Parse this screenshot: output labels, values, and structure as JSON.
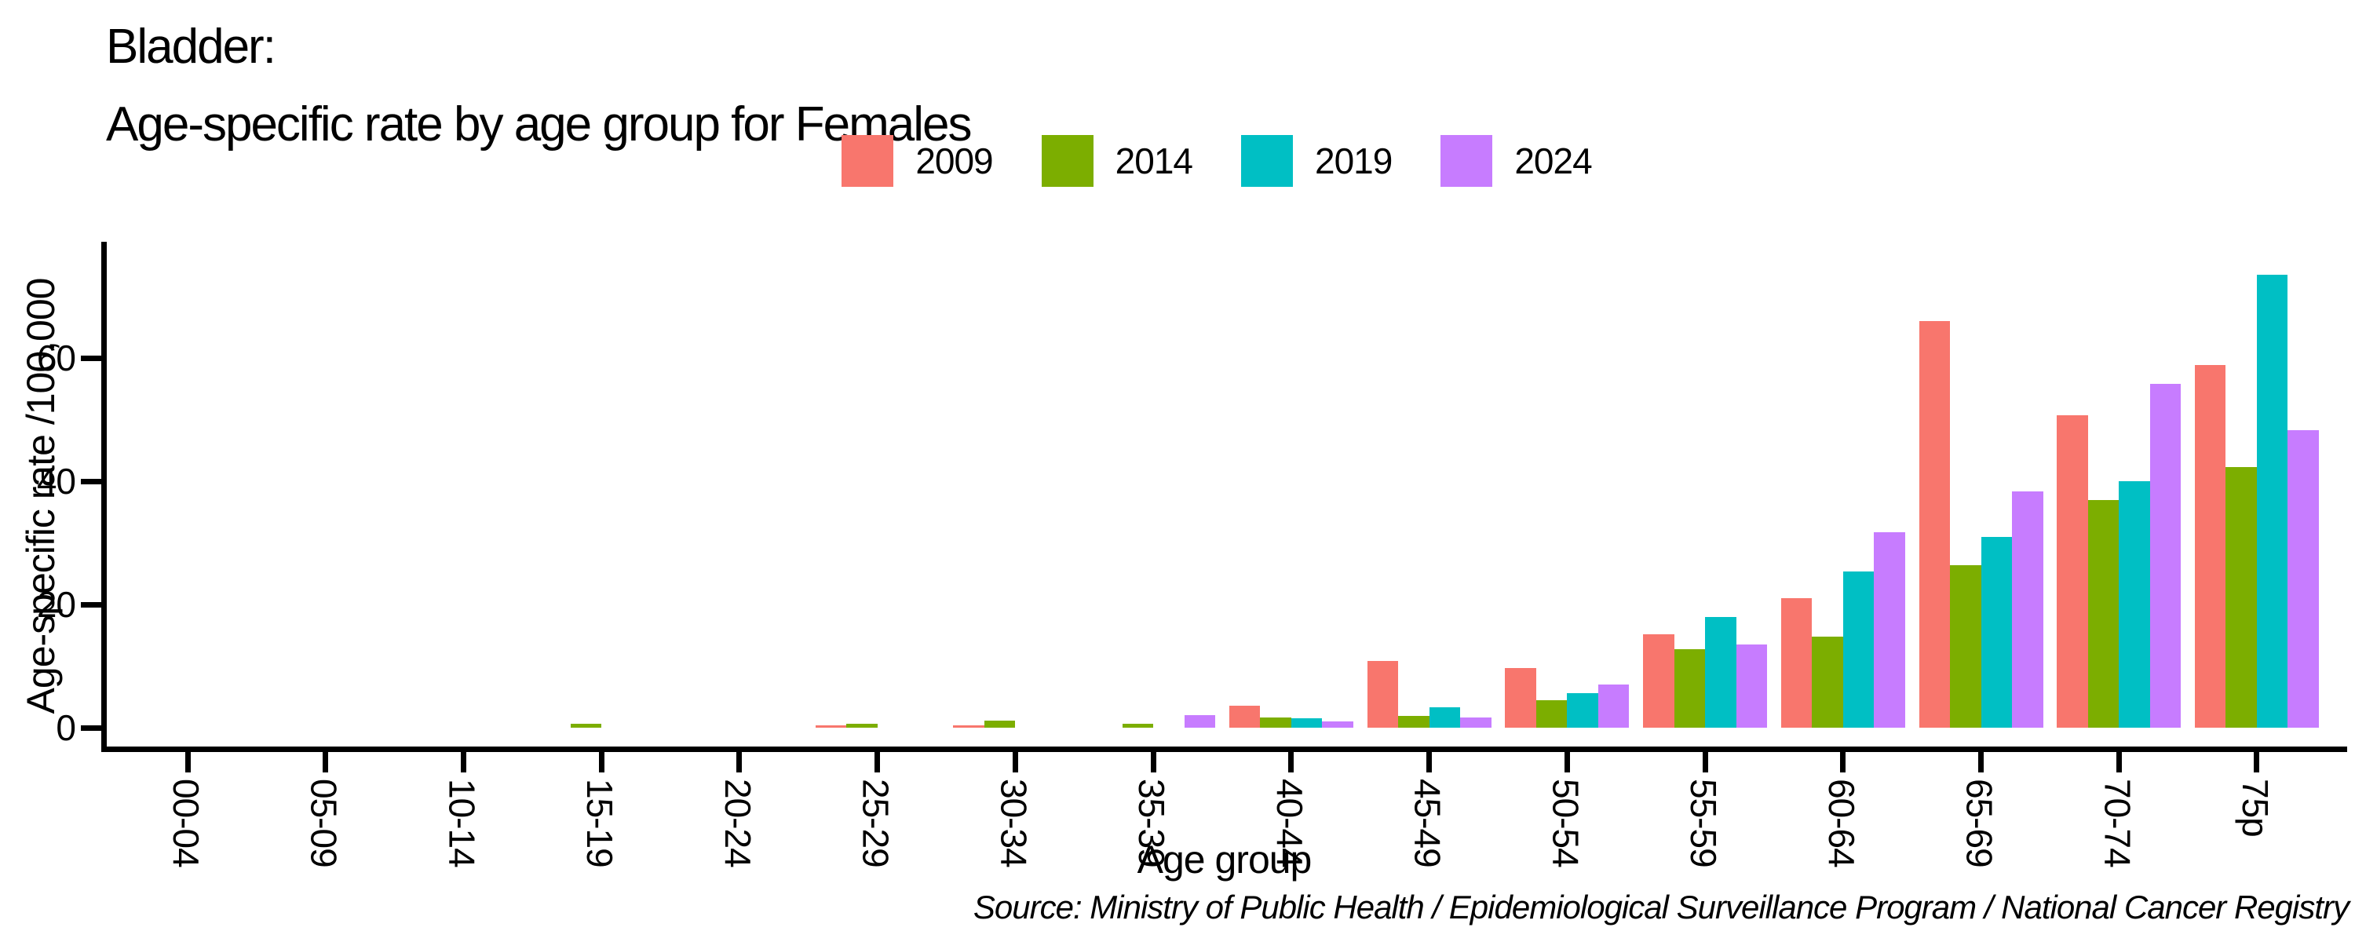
{
  "title": {
    "line1": "Bladder:",
    "line2": "Age-specific rate by age group for Females"
  },
  "legend": {
    "items": [
      {
        "label": "2009",
        "color": "#F8766D"
      },
      {
        "label": "2014",
        "color": "#7CAE00"
      },
      {
        "label": "2019",
        "color": "#00BFC4"
      },
      {
        "label": "2024",
        "color": "#C77CFF"
      }
    ]
  },
  "chart_data": {
    "type": "bar",
    "title": "Bladder: Age-specific rate by age group for Females",
    "xlabel": "Age group",
    "ylabel": "Age-specific rate /100,000",
    "categories": [
      "00-04",
      "05-09",
      "10-14",
      "15-19",
      "20-24",
      "25-29",
      "30-34",
      "35-39",
      "40-44",
      "45-49",
      "50-54",
      "55-59",
      "60-64",
      "65-69",
      "70-74",
      "75p"
    ],
    "series": [
      {
        "name": "2009",
        "color": "#F8766D",
        "values": [
          0,
          0,
          0,
          0,
          0,
          0.4,
          0.4,
          0,
          3.6,
          10.8,
          9.7,
          15.2,
          21,
          66,
          50.7,
          58.9
        ]
      },
      {
        "name": "2014",
        "color": "#7CAE00",
        "values": [
          0,
          0,
          0,
          0.7,
          0,
          0.7,
          1.2,
          0.7,
          1.7,
          1.9,
          4.4,
          12.8,
          14.8,
          26.4,
          36.9,
          42.3
        ]
      },
      {
        "name": "2019",
        "color": "#00BFC4",
        "values": [
          0,
          0,
          0,
          0,
          0,
          0,
          0,
          0,
          1.5,
          3.3,
          5.6,
          18,
          25.3,
          31,
          40,
          73.5
        ]
      },
      {
        "name": "2024",
        "color": "#C77CFF",
        "values": [
          0,
          0,
          0,
          0,
          0,
          0,
          0,
          2,
          1,
          1.7,
          7,
          13.5,
          31.7,
          38.4,
          55.8,
          48.3
        ]
      }
    ],
    "yticks": [
      0,
      20,
      40,
      60
    ],
    "ylim": [
      0,
      78
    ],
    "grid": false,
    "legend_position": "top",
    "bar_baseline_gap_note": "bars rest at y=0 above the x axis line"
  },
  "source": "Source: Ministry of Public Health / Epidemiological Surveillance Program / National Cancer Registry"
}
